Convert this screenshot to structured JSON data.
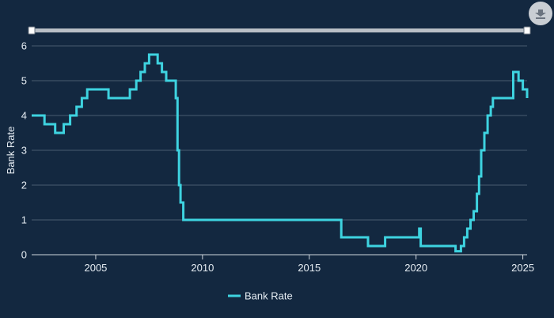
{
  "chart_data": {
    "type": "line",
    "step": true,
    "title": "",
    "xlabel": "",
    "ylabel": "Bank Rate",
    "xlim": [
      2002.0,
      2025.2
    ],
    "ylim": [
      0,
      6
    ],
    "yticks": [
      "0",
      "1",
      "2",
      "3",
      "4",
      "5",
      "6"
    ],
    "xticks": [
      "2005",
      "2010",
      "2015",
      "2020",
      "2025"
    ],
    "grid": "horizontal",
    "legend_position": "bottom-center",
    "series": [
      {
        "name": "Bank Rate",
        "color": "#3ed3e0",
        "x": [
          2002.0,
          2002.6,
          2003.1,
          2003.5,
          2003.8,
          2004.1,
          2004.35,
          2004.6,
          2005.6,
          2006.6,
          2006.9,
          2007.1,
          2007.3,
          2007.5,
          2007.9,
          2008.1,
          2008.3,
          2008.75,
          2008.83,
          2008.9,
          2008.97,
          2009.1,
          2016.5,
          2017.75,
          2018.55,
          2020.15,
          2020.22,
          2021.85,
          2022.1,
          2022.25,
          2022.4,
          2022.55,
          2022.7,
          2022.85,
          2022.95,
          2023.05,
          2023.2,
          2023.35,
          2023.5,
          2023.6,
          2024.55,
          2024.8,
          2025.0,
          2025.2
        ],
        "y": [
          4.0,
          3.75,
          3.5,
          3.75,
          4.0,
          4.25,
          4.5,
          4.75,
          4.5,
          4.75,
          5.0,
          5.25,
          5.5,
          5.75,
          5.5,
          5.25,
          5.0,
          4.5,
          3.0,
          2.0,
          1.5,
          1.0,
          0.5,
          0.25,
          0.5,
          0.75,
          0.25,
          0.1,
          0.25,
          0.5,
          0.75,
          1.0,
          1.25,
          1.75,
          2.25,
          3.0,
          3.5,
          4.0,
          4.25,
          4.5,
          5.25,
          5.0,
          4.75,
          4.5
        ]
      }
    ]
  },
  "ui": {
    "download_icon": "download-icon",
    "navigator": "range-slider"
  }
}
